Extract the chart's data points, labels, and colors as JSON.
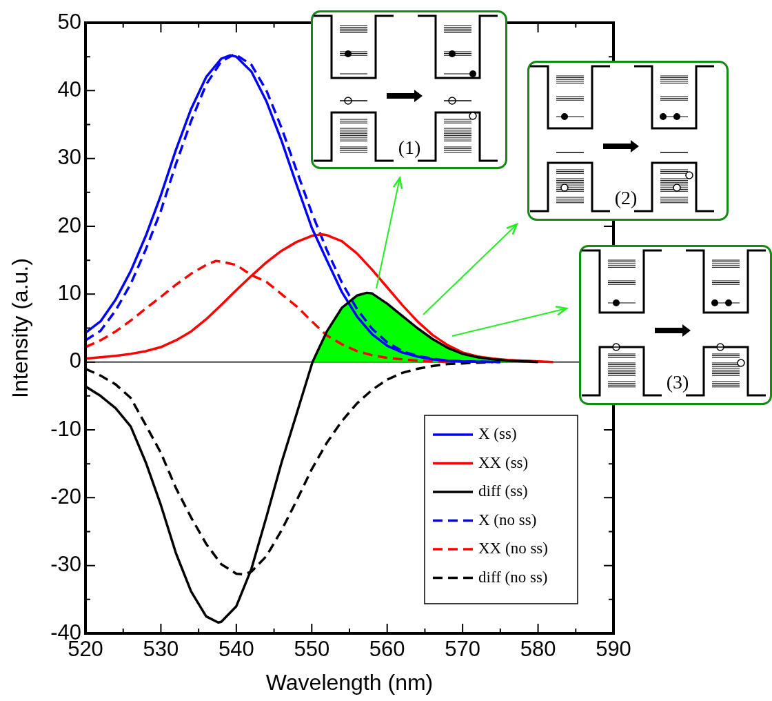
{
  "chart_data": {
    "type": "line",
    "xlabel": "Wavelength (nm)",
    "ylabel": "Intensity (a.u.)",
    "xlim": [
      520,
      590
    ],
    "ylim": [
      -40,
      50
    ],
    "xticks": [
      520,
      {
        "value": 525,
        "label": null
      },
      530,
      {
        "value": 535,
        "label": null
      },
      540,
      {
        "value": 545,
        "label": null
      },
      550,
      {
        "value": 555,
        "label": null
      },
      560,
      {
        "value": 565,
        "label": null
      },
      570,
      {
        "value": 575,
        "label": null
      },
      580,
      {
        "value": 585,
        "label": null
      },
      590
    ],
    "yticks": [
      -40,
      {
        "value": -35,
        "label": null
      },
      -30,
      {
        "value": -25,
        "label": null
      },
      -20,
      {
        "value": -15,
        "label": null
      },
      -10,
      {
        "value": -5,
        "label": null
      },
      0,
      {
        "value": 5,
        "label": null
      },
      10,
      {
        "value": 15,
        "label": null
      },
      20,
      {
        "value": 25,
        "label": null
      },
      30,
      {
        "value": 35,
        "label": null
      },
      40,
      {
        "value": 45,
        "label": null
      },
      50
    ],
    "marker": "none",
    "legend": "bottom right",
    "ref_lines": [
      {
        "axis": "y",
        "value": 0,
        "color": "#000000"
      }
    ],
    "annotations": [
      "(1)",
      "(2)",
      "(3)"
    ],
    "series": [
      {
        "type": "area",
        "color": "#00ff00",
        "x": [
          550.1,
          552,
          554,
          556,
          557.3,
          558,
          560,
          562,
          564,
          566,
          568,
          570,
          572,
          574,
          576,
          578,
          580
        ],
        "values": [
          0,
          4.5,
          8.0,
          9.8,
          10.2,
          10.1,
          8.6,
          6.8,
          5.0,
          3.4,
          2.1,
          1.2,
          0.7,
          0.4,
          0.2,
          0.1,
          0
        ]
      },
      {
        "name": "X (ss)",
        "color": "#0000ff",
        "line_style": "solid",
        "x": [
          520,
          522,
          524,
          526,
          528,
          530,
          532,
          534,
          536,
          538,
          539.2,
          540,
          542,
          544,
          546,
          548,
          550,
          552,
          554,
          556,
          558,
          560,
          562,
          564,
          566,
          568,
          570,
          575
        ],
        "values": [
          4.3,
          6.0,
          9.2,
          13.4,
          18.6,
          24.6,
          31.3,
          37.3,
          42.0,
          44.7,
          45.2,
          45.0,
          42.8,
          38.4,
          32.6,
          26.1,
          19.8,
          15.0,
          10.3,
          6.7,
          4.1,
          2.4,
          1.4,
          0.8,
          0.4,
          0.2,
          0.1,
          0
        ]
      },
      {
        "name": "XX (ss)",
        "color": "#ff0000",
        "line_style": "solid",
        "x": [
          520,
          522,
          524,
          526,
          528,
          530,
          532,
          534,
          536,
          538,
          540,
          542,
          544,
          546,
          548,
          550,
          551.3,
          552,
          554,
          556,
          558,
          560,
          562,
          564,
          566,
          568,
          570,
          572,
          574,
          576,
          578,
          580,
          582
        ],
        "values": [
          0.5,
          0.7,
          0.9,
          1.2,
          1.6,
          2.2,
          3.2,
          4.5,
          6.3,
          8.4,
          10.6,
          12.7,
          14.7,
          16.4,
          17.7,
          18.6,
          18.8,
          18.7,
          17.8,
          16.0,
          13.6,
          11.0,
          8.4,
          6.0,
          4.0,
          2.5,
          1.4,
          0.8,
          0.5,
          0.3,
          0.2,
          0.1,
          0
        ]
      },
      {
        "name": "diff (ss)",
        "color": "#000000",
        "line_style": "solid",
        "x": [
          520,
          522,
          524,
          526,
          528,
          530,
          532,
          534,
          536,
          537.6,
          538,
          540,
          542,
          544,
          546,
          548,
          550.1,
          552,
          554,
          556,
          557.3,
          558,
          560,
          562,
          564,
          566,
          568,
          570,
          572,
          574,
          576,
          578,
          580
        ],
        "values": [
          -3.6,
          -5.0,
          -6.8,
          -9.5,
          -14.8,
          -21.1,
          -28.2,
          -33.8,
          -37.5,
          -38.4,
          -38.3,
          -36.0,
          -30.5,
          -22.8,
          -14.8,
          -7.6,
          0,
          4.5,
          8.0,
          9.8,
          10.2,
          10.1,
          8.6,
          6.8,
          5.0,
          3.4,
          2.1,
          1.2,
          0.7,
          0.4,
          0.2,
          0.1,
          0
        ]
      },
      {
        "name": "X (no ss)",
        "color": "#0000ff",
        "line_style": "dashed",
        "x": [
          520,
          522,
          524,
          526,
          528,
          530,
          532,
          534,
          536,
          538,
          539.8,
          542,
          544,
          546,
          548,
          550,
          552,
          554,
          556,
          558,
          560,
          562,
          564,
          566,
          568,
          570,
          575
        ],
        "values": [
          3.2,
          4.6,
          7.6,
          11.5,
          16.6,
          22.3,
          29.2,
          35.5,
          40.9,
          44.3,
          45.4,
          43.8,
          40.0,
          34.5,
          28.2,
          22.0,
          16.5,
          11.7,
          7.8,
          4.9,
          2.9,
          1.6,
          0.9,
          0.5,
          0.2,
          0.1,
          0
        ]
      },
      {
        "name": "XX (no ss)",
        "color": "#ff0000",
        "line_style": "dashed",
        "x": [
          520,
          522,
          524,
          526,
          528,
          530,
          532,
          534,
          536,
          537.3,
          538,
          540,
          542,
          544,
          546,
          548,
          550,
          552,
          554,
          556,
          558,
          560,
          562,
          564,
          566,
          568
        ],
        "values": [
          2.2,
          3.2,
          4.5,
          6.1,
          7.9,
          9.6,
          11.4,
          13.0,
          14.3,
          14.9,
          14.8,
          14.3,
          12.8,
          11.8,
          10.0,
          8.2,
          6.0,
          3.9,
          2.6,
          1.6,
          1.0,
          0.6,
          0.4,
          0.2,
          0.1,
          0
        ]
      },
      {
        "name": "diff (no ss)",
        "color": "#000000",
        "line_style": "dashed",
        "x": [
          520,
          522,
          524,
          526,
          528,
          530,
          532,
          534,
          536,
          538,
          540,
          541,
          542,
          544,
          546,
          548,
          550,
          552,
          554,
          556,
          558,
          560,
          562,
          564,
          566,
          568,
          570,
          572,
          574
        ],
        "values": [
          -1.0,
          -2.0,
          -3.3,
          -5.3,
          -9.3,
          -13.4,
          -18.6,
          -22.9,
          -26.8,
          -29.8,
          -31.2,
          -31.3,
          -30.9,
          -28.6,
          -24.8,
          -20.4,
          -15.8,
          -11.9,
          -8.7,
          -6.1,
          -4.1,
          -2.6,
          -1.6,
          -1.0,
          -0.6,
          -0.3,
          -0.2,
          -0.1,
          0
        ]
      }
    ]
  }
}
